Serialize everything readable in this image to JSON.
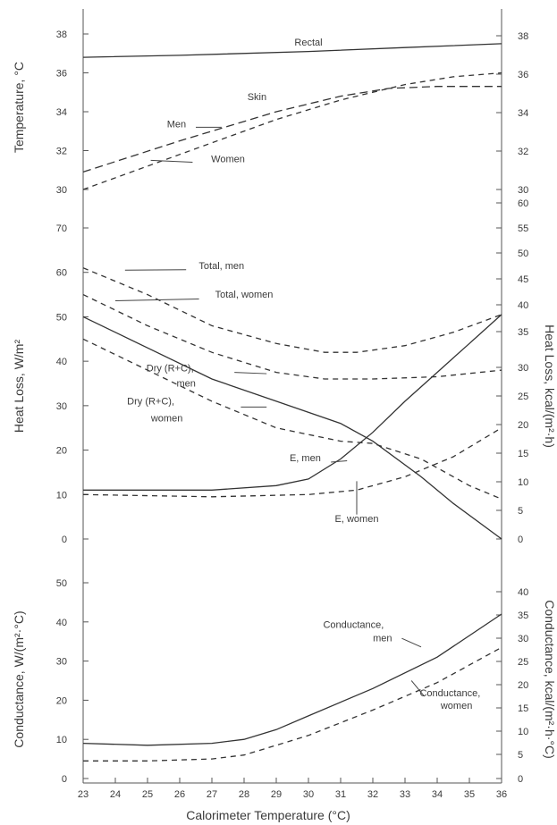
{
  "chart_data": [
    {
      "type": "line",
      "ylabel": "Temperature, °C",
      "yticks": [
        30,
        32,
        34,
        36,
        38
      ],
      "yticks_right": [
        "30",
        "32",
        "34",
        "36",
        "38"
      ],
      "ylim": [
        30,
        38.8
      ],
      "series": [
        {
          "name": "Rectal",
          "dash": "solid",
          "points": [
            [
              23,
              36.8
            ],
            [
              26,
              36.9
            ],
            [
              30,
              37.1
            ],
            [
              33,
              37.3
            ],
            [
              36,
              37.5
            ]
          ]
        },
        {
          "name": "Skin, men",
          "dash": "longdash",
          "points": [
            [
              23,
              30.9
            ],
            [
              26,
              32.5
            ],
            [
              29,
              34.0
            ],
            [
              31,
              34.8
            ],
            [
              32.5,
              35.2
            ],
            [
              34,
              35.3
            ],
            [
              36,
              35.3
            ]
          ]
        },
        {
          "name": "Skin, women",
          "dash": "shortdash",
          "points": [
            [
              23,
              30.0
            ],
            [
              26,
              31.8
            ],
            [
              29,
              33.6
            ],
            [
              31,
              34.6
            ],
            [
              33,
              35.4
            ],
            [
              34.5,
              35.8
            ],
            [
              36,
              36.0
            ]
          ]
        }
      ],
      "annotations": [
        {
          "text": "Rectal",
          "x": 30,
          "y": 37.4
        },
        {
          "text": "Skin",
          "x": 28.4,
          "y": 34.6
        },
        {
          "text": "Men",
          "x": 25.9,
          "y": 33.2
        },
        {
          "text": "Women",
          "x": 27.5,
          "y": 31.4
        }
      ]
    },
    {
      "type": "line",
      "ylabel": "Heat Loss, W/m²",
      "ylabel_right": "Heat Loss, kcal/(m²·h)",
      "yticks": [
        0,
        10,
        20,
        30,
        40,
        50,
        60,
        70
      ],
      "yticks_right": [
        "0",
        "5",
        "10",
        "15",
        "20",
        "25",
        "30",
        "35",
        "40",
        "45",
        "50",
        "55",
        "60"
      ],
      "ylim": [
        0,
        70
      ],
      "series": [
        {
          "name": "Total, men",
          "dash": "shortdash",
          "points": [
            [
              23,
              61
            ],
            [
              25,
              55
            ],
            [
              27,
              48
            ],
            [
              29,
              44
            ],
            [
              30.5,
              42
            ],
            [
              31.5,
              42
            ],
            [
              33,
              43.5
            ],
            [
              34.5,
              46.5
            ],
            [
              36,
              50.5
            ]
          ]
        },
        {
          "name": "Total, women",
          "dash": "shortdash",
          "points": [
            [
              23,
              55
            ],
            [
              25,
              48
            ],
            [
              27,
              42
            ],
            [
              29,
              37.5
            ],
            [
              30.5,
              36
            ],
            [
              32,
              36
            ],
            [
              34,
              36.5
            ],
            [
              36,
              38
            ]
          ]
        },
        {
          "name": "Dry (R+C), men",
          "dash": "solid",
          "points": [
            [
              23,
              50
            ],
            [
              25,
              43
            ],
            [
              27,
              36
            ],
            [
              29,
              31
            ],
            [
              31,
              26
            ],
            [
              32,
              22
            ],
            [
              33.5,
              14
            ],
            [
              34.5,
              8
            ],
            [
              36,
              0
            ]
          ]
        },
        {
          "name": "Dry (R+C), women",
          "dash": "shortdash",
          "points": [
            [
              23,
              45
            ],
            [
              25,
              38
            ],
            [
              27,
              31
            ],
            [
              29,
              25
            ],
            [
              31,
              22
            ],
            [
              32,
              21.5
            ],
            [
              33.5,
              18
            ],
            [
              35,
              12
            ],
            [
              36,
              9
            ]
          ]
        },
        {
          "name": "E, men",
          "dash": "solid",
          "points": [
            [
              23,
              11
            ],
            [
              27,
              11
            ],
            [
              29,
              12
            ],
            [
              30,
              13.5
            ],
            [
              31,
              18
            ],
            [
              32,
              24
            ],
            [
              33,
              31
            ],
            [
              34,
              37.5
            ],
            [
              35,
              44
            ],
            [
              36,
              50.5
            ]
          ]
        },
        {
          "name": "E, women",
          "dash": "shortdash",
          "points": [
            [
              23,
              10
            ],
            [
              27,
              9.5
            ],
            [
              30,
              10
            ],
            [
              31.5,
              11
            ],
            [
              33,
              14
            ],
            [
              34.5,
              18.5
            ],
            [
              36,
              25
            ]
          ]
        }
      ],
      "annotations": [
        {
          "text": "Total, men",
          "x": 27.3,
          "y": 60.7
        },
        {
          "text": "Total, women",
          "x": 28,
          "y": 54.3
        },
        {
          "text": "Dry (R+C),",
          "x": 25.7,
          "y": 37.7
        },
        {
          "text": "men",
          "x": 26.2,
          "y": 34.3
        },
        {
          "text": "Dry (R+C),",
          "x": 25.1,
          "y": 30.3
        },
        {
          "text": "women",
          "x": 25.6,
          "y": 26.5
        },
        {
          "text": "E, men",
          "x": 29.9,
          "y": 17.5
        },
        {
          "text": "E, women",
          "x": 31.5,
          "y": 3.8
        }
      ]
    },
    {
      "type": "line",
      "ylabel": "Conductance, W/(m²·°C)",
      "ylabel_right": "Conductance, kcal/(m²·h·°C)",
      "yticks": [
        0,
        10,
        20,
        30,
        40,
        50
      ],
      "yticks_right": [
        "0",
        "5",
        "10",
        "15",
        "20",
        "25",
        "30",
        "35",
        "40"
      ],
      "ylim": [
        0,
        55
      ],
      "series": [
        {
          "name": "Conductance, men",
          "dash": "solid",
          "points": [
            [
              23,
              9
            ],
            [
              25,
              8.5
            ],
            [
              27,
              9
            ],
            [
              28,
              10
            ],
            [
              29,
              12.5
            ],
            [
              30,
              16
            ],
            [
              32,
              23
            ],
            [
              34,
              31
            ],
            [
              36,
              42
            ]
          ]
        },
        {
          "name": "Conductance, women",
          "dash": "shortdash",
          "points": [
            [
              23,
              4.5
            ],
            [
              25,
              4.5
            ],
            [
              27,
              5
            ],
            [
              28,
              6
            ],
            [
              29,
              8.5
            ],
            [
              30,
              11
            ],
            [
              32,
              17.5
            ],
            [
              34,
              24.5
            ],
            [
              36,
              33.5
            ]
          ]
        }
      ],
      "annotations": [
        {
          "text": "Conductance,",
          "x": 31.4,
          "y": 38.5
        },
        {
          "text": "men",
          "x": 32.3,
          "y": 35
        },
        {
          "text": "Conductance,",
          "x": 34.4,
          "y": 21
        },
        {
          "text": "women",
          "x": 34.6,
          "y": 17.8
        }
      ]
    }
  ],
  "x_axis": {
    "label": "Calorimeter Temperature (°C)",
    "ticks": [
      23,
      24,
      25,
      26,
      27,
      28,
      29,
      30,
      31,
      32,
      33,
      34,
      35,
      36
    ],
    "xlim": [
      23,
      36
    ]
  }
}
